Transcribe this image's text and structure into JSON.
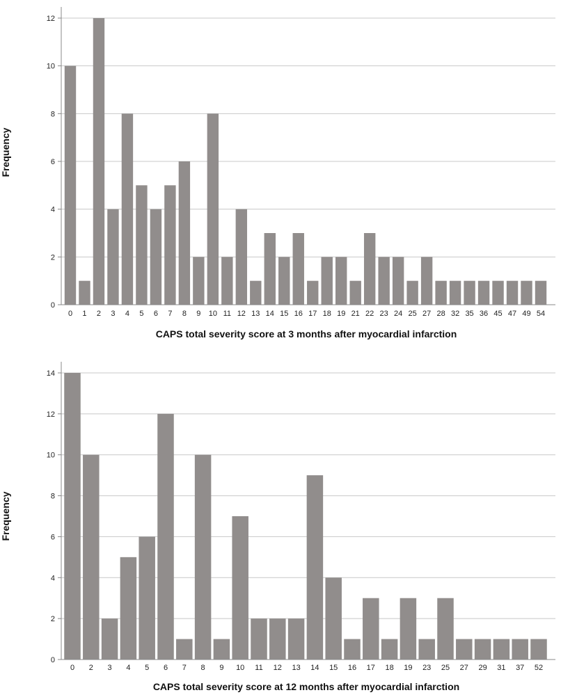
{
  "chart_data": [
    {
      "type": "bar",
      "xlabel": "CAPS total severity score at 3 months after myocardial infarction",
      "ylabel": "Frequency",
      "ylim": [
        0,
        12
      ],
      "yticks": [
        0,
        2,
        4,
        6,
        8,
        10,
        12
      ],
      "grid": "horizontal",
      "bar_color": "#918d8c",
      "categories": [
        "0",
        "1",
        "2",
        "3",
        "4",
        "5",
        "6",
        "7",
        "8",
        "9",
        "10",
        "11",
        "12",
        "13",
        "14",
        "15",
        "16",
        "17",
        "18",
        "19",
        "21",
        "22",
        "23",
        "24",
        "25",
        "27",
        "28",
        "32",
        "35",
        "36",
        "45",
        "47",
        "49",
        "54"
      ],
      "values": [
        10,
        1,
        12,
        4,
        8,
        5,
        4,
        5,
        6,
        2,
        8,
        2,
        4,
        1,
        3,
        2,
        3,
        1,
        2,
        2,
        1,
        3,
        2,
        2,
        1,
        2,
        1,
        1,
        1,
        1,
        1,
        1,
        1,
        1
      ]
    },
    {
      "type": "bar",
      "xlabel": "CAPS total severity score at 12 months after myocardial infarction",
      "ylabel": "Frequency",
      "ylim": [
        0,
        14
      ],
      "yticks": [
        0,
        2,
        4,
        6,
        8,
        10,
        12,
        14
      ],
      "grid": "horizontal",
      "bar_color": "#918d8c",
      "categories": [
        "0",
        "2",
        "3",
        "4",
        "5",
        "6",
        "7",
        "8",
        "9",
        "10",
        "11",
        "12",
        "13",
        "14",
        "15",
        "16",
        "17",
        "18",
        "19",
        "23",
        "25",
        "27",
        "29",
        "31",
        "37",
        "52"
      ],
      "values": [
        14,
        10,
        2,
        5,
        6,
        12,
        1,
        10,
        1,
        7,
        2,
        2,
        2,
        9,
        4,
        1,
        3,
        1,
        3,
        1,
        3,
        1,
        1,
        1,
        1,
        1
      ]
    }
  ]
}
